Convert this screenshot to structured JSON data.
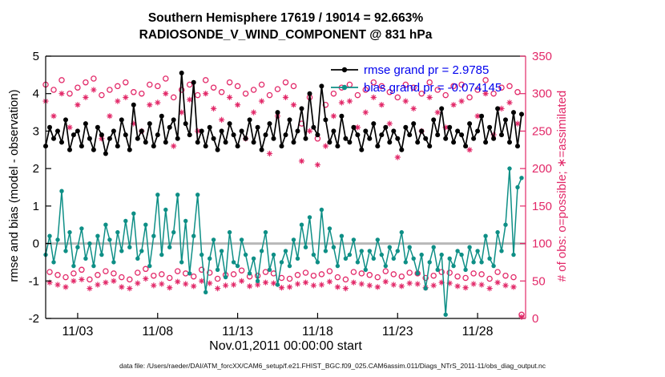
{
  "figure": {
    "title_line1": "Southern Hemisphere 17619 / 19014 = 92.663%",
    "title_line2": "RADIOSONDE_V_WIND_COMPONENT @ 831 hPa",
    "xlabel": "Nov.01,2011 00:00:00 start",
    "ylabel_left": "rmse and bias (model - observation)",
    "ylabel_right": "# of obs: o=possible; ∗=assimilated",
    "caption": "data file: /Users/raeder/DAI/ATM_forcXX/CAM6_setup/f.e21.FHIST_BGC.f09_025.CAM6assim.011/Diags_NTrS_2011-11/obs_diag_output.nc",
    "legend": {
      "rmse_label": "rmse grand pr = 2.9785",
      "bias_label": "bias grand pr = -0.074145"
    }
  },
  "chart_data": {
    "type": "line",
    "title": "Southern Hemisphere 17619 / 19014 = 92.663%",
    "subtitle": "RADIOSONDE_V_WIND_COMPONENT @ 831 hPa",
    "xlabel": "Nov.01,2011 00:00:00 start",
    "ylabel_left": "rmse and bias (model - observation)",
    "ylabel_right": "# of obs: o=possible; ∗=assimilated",
    "rmse_grand_mean": 2.9785,
    "bias_grand_mean": -0.074145,
    "x_start_day": 1.0,
    "x_step_days": 0.25,
    "xlim": [
      1,
      31
    ],
    "xticks": [
      3,
      8,
      13,
      18,
      23,
      28
    ],
    "xtick_labels": [
      "11/03",
      "11/08",
      "11/13",
      "11/18",
      "11/23",
      "11/28"
    ],
    "ylim_left": [
      -2,
      5
    ],
    "yticks_left": [
      -2,
      -1,
      0,
      1,
      2,
      3,
      4,
      5
    ],
    "ylim_right": [
      0,
      350
    ],
    "yticks_right": [
      0,
      50,
      100,
      150,
      200,
      250,
      300,
      350
    ],
    "grid": false,
    "legend_position": "top-right-inside",
    "colors": {
      "obs_axis": "#e22868",
      "legend_text": "#0000ee",
      "zero_line": "#b8b8b8",
      "axis": "#000000"
    },
    "series": {
      "rmse": {
        "name": "rmse",
        "color": "#000000",
        "axis": "left",
        "values": [
          2.6,
          3.1,
          2.8,
          3.0,
          2.7,
          3.3,
          2.5,
          2.9,
          3.0,
          2.6,
          3.2,
          2.8,
          2.5,
          3.1,
          2.9,
          2.4,
          2.8,
          3.0,
          2.6,
          3.3,
          2.9,
          2.5,
          3.7,
          2.8,
          3.0,
          2.7,
          3.2,
          2.6,
          2.9,
          3.4,
          2.7,
          3.1,
          3.3,
          2.8,
          4.55,
          3.2,
          2.9,
          4.3,
          2.7,
          3.0,
          2.6,
          3.1,
          2.8,
          2.5,
          3.0,
          2.7,
          3.2,
          2.9,
          2.6,
          3.0,
          2.8,
          3.3,
          2.7,
          3.1,
          2.5,
          2.9,
          3.2,
          2.8,
          3.5,
          2.6,
          2.9,
          3.3,
          2.7,
          3.0,
          3.6,
          2.8,
          4.0,
          3.1,
          2.9,
          4.2,
          3.3,
          2.7,
          3.0,
          2.6,
          3.4,
          2.8,
          2.7,
          3.1,
          2.9,
          2.5,
          3.0,
          2.8,
          3.2,
          2.6,
          2.9,
          3.1,
          2.7,
          3.0,
          2.8,
          2.5,
          3.1,
          2.9,
          3.2,
          2.7,
          3.0,
          2.8,
          2.6,
          3.3,
          2.9,
          3.6,
          2.8,
          3.1,
          2.7,
          3.0,
          2.9,
          2.6,
          3.2,
          2.8,
          3.0,
          3.4,
          2.7,
          3.1,
          2.8,
          3.6,
          2.9,
          3.3,
          2.7,
          3.5,
          2.6,
          3.45
        ]
      },
      "bias": {
        "name": "bias",
        "color": "#0e8f86",
        "axis": "left",
        "values": [
          -0.3,
          0.2,
          -0.5,
          0.1,
          1.4,
          -0.2,
          0.3,
          -0.6,
          -0.1,
          0.4,
          -0.4,
          0.0,
          -0.6,
          0.2,
          -0.3,
          0.5,
          0.1,
          -0.5,
          0.3,
          -0.2,
          0.6,
          -0.1,
          0.8,
          -0.4,
          -0.2,
          0.5,
          -0.6,
          0.2,
          1.3,
          -0.3,
          0.9,
          -0.1,
          0.3,
          1.3,
          -0.5,
          0.6,
          -0.8,
          0.2,
          1.3,
          -0.3,
          -1.3,
          -0.4,
          0.1,
          -0.7,
          -0.2,
          -0.9,
          0.3,
          -0.5,
          -0.6,
          0.1,
          -0.3,
          -0.8,
          -0.4,
          -1.0,
          -0.2,
          0.3,
          -0.7,
          -0.3,
          -1.1,
          -0.5,
          -0.2,
          -0.6,
          0.1,
          -0.4,
          0.5,
          -0.1,
          0.7,
          -0.3,
          -0.5,
          0.9,
          -0.2,
          0.4,
          -0.1,
          -0.6,
          0.2,
          -0.4,
          -0.3,
          0.1,
          -0.5,
          -0.2,
          -0.7,
          -0.2,
          -0.4,
          0.1,
          -0.3,
          -0.6,
          -0.1,
          -0.4,
          -0.2,
          0.3,
          -0.5,
          -0.1,
          -0.4,
          -0.8,
          -0.3,
          -1.2,
          -0.5,
          -0.1,
          -0.7,
          -0.3,
          -1.9,
          -0.4,
          -0.6,
          -0.2,
          -0.3,
          -0.7,
          -0.1,
          -0.5,
          -0.2,
          -0.5,
          0.2,
          -0.4,
          -0.6,
          0.3,
          -0.2,
          0.5,
          2.0,
          -0.3,
          1.5,
          1.75
        ]
      },
      "possible": {
        "name": "# obs possible",
        "marker": "circle",
        "color": "#e22868",
        "axis": "right",
        "values": [
          312,
          62,
          305,
          58,
          318,
          55,
          300,
          60,
          308,
          65,
          315,
          52,
          320,
          58,
          298,
          63,
          305,
          60,
          310,
          55,
          315,
          52,
          302,
          61,
          300,
          66,
          312,
          57,
          310,
          59,
          320,
          54,
          295,
          63,
          305,
          60,
          312,
          56,
          298,
          65,
          318,
          61,
          308,
          53,
          302,
          58,
          315,
          59,
          310,
          64,
          300,
          56,
          305,
          57,
          312,
          62,
          298,
          60,
          306,
          54,
          315,
          53,
          310,
          58,
          260,
          61,
          295,
          57,
          240,
          59,
          285,
          63,
          300,
          55,
          308,
          52,
          312,
          62,
          298,
          60,
          305,
          58,
          315,
          55,
          310,
          63,
          302,
          59,
          295,
          56,
          312,
          61,
          308,
          60,
          300,
          54,
          315,
          57,
          305,
          62,
          298,
          61,
          310,
          56,
          312,
          54,
          295,
          60,
          305,
          59,
          318,
          53,
          300,
          62,
          308,
          57,
          310,
          55,
          302,
          5
        ]
      },
      "assimilated": {
        "name": "# obs assimilated",
        "marker": "asterisk",
        "color": "#e22868",
        "axis": "right",
        "values": [
          290,
          48,
          270,
          45,
          300,
          42,
          255,
          50,
          285,
          52,
          295,
          40,
          305,
          45,
          240,
          48,
          270,
          50,
          290,
          42,
          295,
          40,
          260,
          47,
          250,
          53,
          285,
          44,
          288,
          46,
          300,
          41,
          230,
          49,
          275,
          46,
          292,
          43,
          250,
          50,
          300,
          47,
          280,
          40,
          265,
          44,
          295,
          45,
          285,
          50,
          240,
          43,
          275,
          45,
          290,
          48,
          220,
          47,
          270,
          41,
          295,
          42,
          285,
          46,
          210,
          48,
          250,
          44,
          205,
          45,
          230,
          49,
          270,
          42,
          288,
          40,
          290,
          48,
          255,
          46,
          275,
          44,
          295,
          42,
          285,
          49,
          260,
          45,
          215,
          43,
          290,
          47,
          280,
          46,
          250,
          41,
          295,
          44,
          275,
          48,
          255,
          47,
          285,
          43,
          290,
          41,
          225,
          46,
          270,
          45,
          300,
          40,
          245,
          48,
          280,
          44,
          288,
          42,
          260,
          2
        ]
      }
    }
  }
}
